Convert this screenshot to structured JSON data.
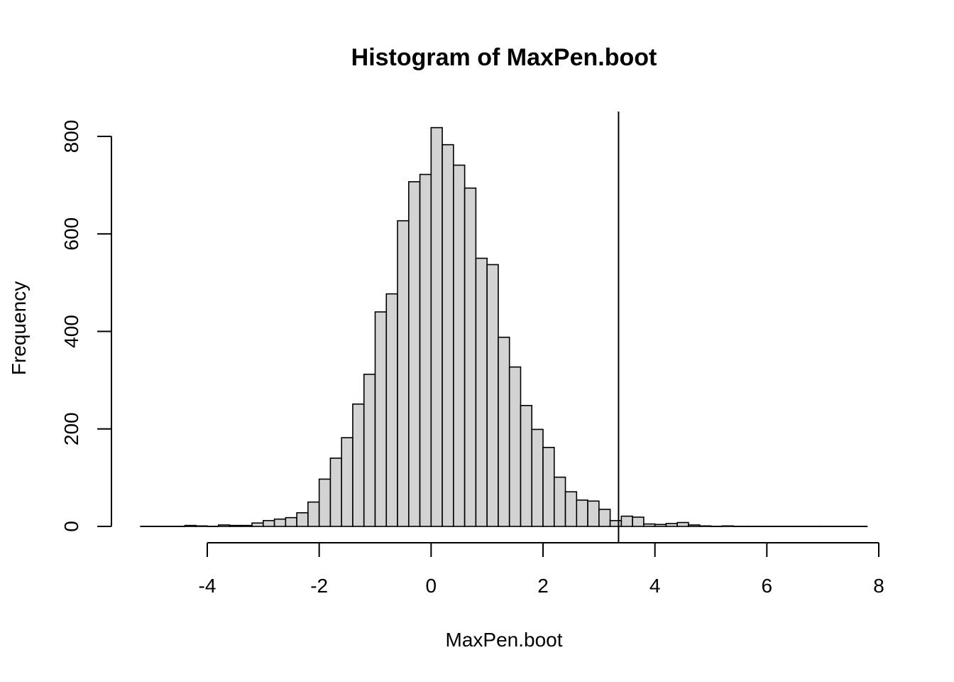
{
  "chart_data": {
    "type": "bar",
    "title": "Histogram of MaxPen.boot",
    "xlabel": "MaxPen.boot",
    "ylabel": "Frequency",
    "xlim": [
      -4,
      8
    ],
    "ylim": [
      0,
      800
    ],
    "x_ticks": [
      "-4",
      "-2",
      "0",
      "2",
      "4",
      "6",
      "8"
    ],
    "y_ticks": [
      "0",
      "200",
      "400",
      "600",
      "800"
    ],
    "bin_width": 0.2,
    "bin_start": -5.2,
    "bar_color": "#d3d3d3",
    "reference_line": {
      "x": 3.35
    },
    "counts": [
      0,
      0,
      0,
      0,
      2,
      1,
      0,
      3,
      2,
      2,
      7,
      12,
      15,
      18,
      28,
      50,
      97,
      140,
      182,
      251,
      312,
      440,
      477,
      627,
      707,
      722,
      818,
      783,
      741,
      694,
      550,
      537,
      388,
      327,
      248,
      199,
      162,
      101,
      71,
      54,
      52,
      35,
      12,
      21,
      19,
      5,
      4,
      6,
      8,
      3,
      1,
      0,
      1,
      0,
      0,
      0,
      0,
      0,
      0,
      0,
      0,
      0,
      0,
      0,
      0
    ]
  }
}
